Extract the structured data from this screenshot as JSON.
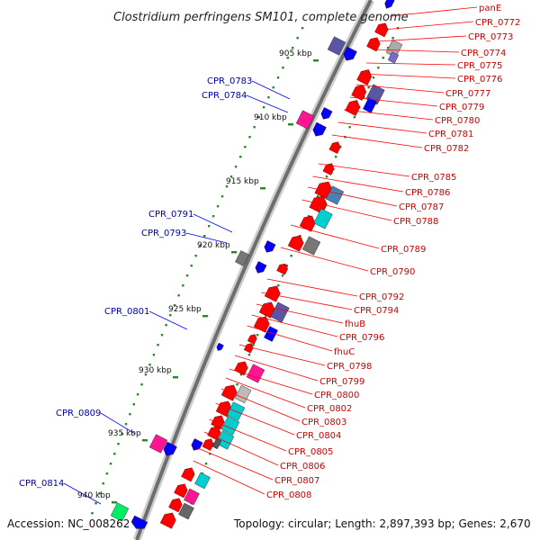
{
  "title": "Clostridium perfringens SM101, complete genome",
  "footer": {
    "accession": "Accession: NC_008262",
    "topology": "Topology: circular; Length: 2,897,393 bp; Genes: 2,670"
  },
  "kbp_ticks": [
    "905 kbp",
    "910 kbp",
    "915 kbp",
    "920 kbp",
    "925 kbp",
    "930 kbp",
    "935 kbp",
    "940 kbp"
  ],
  "right_labels": [
    "panE",
    "CPR_0772",
    "CPR_0773",
    "CPR_0774",
    "CPR_0775",
    "CPR_0776",
    "CPR_0777",
    "CPR_0779",
    "CPR_0780",
    "CPR_0781",
    "CPR_0782",
    "CPR_0785",
    "CPR_0786",
    "CPR_0787",
    "CPR_0788",
    "CPR_0789",
    "CPR_0790",
    "CPR_0792",
    "CPR_0794",
    "fhuB",
    "CPR_0796",
    "fhuC",
    "CPR_0798",
    "CPR_0799",
    "CPR_0800",
    "CPR_0802",
    "CPR_0803",
    "CPR_0804",
    "CPR_0805",
    "CPR_0806",
    "CPR_0807",
    "CPR_0808"
  ],
  "left_labels": [
    "CPR_0783",
    "CPR_0784",
    "CPR_0791",
    "CPR_0793",
    "CPR_0801",
    "CPR_0809",
    "CPR_0814"
  ],
  "colors": {
    "forward": "#ff0000",
    "reverse": "#0000ff",
    "backbone": "#888888",
    "tick": "#228b22",
    "right_label": "#cc0000",
    "left_label": "#0000aa",
    "magenta": "#ff1493",
    "cyan": "#00ced1",
    "slate": "#5a55a5",
    "gray": "#777777",
    "green": "#00ee66"
  }
}
